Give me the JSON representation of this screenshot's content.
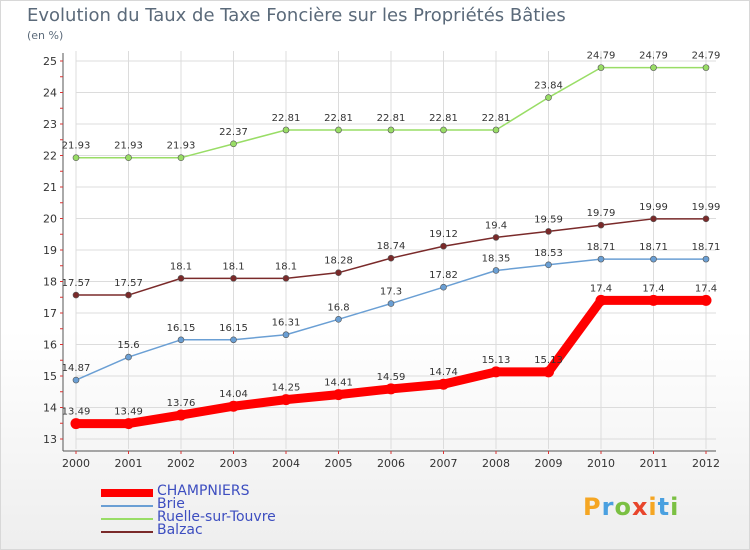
{
  "chart_data": {
    "type": "line",
    "title": "Evolution du Taux de Taxe Foncière sur les Propriétés Bâties",
    "subtitle": "(en %)",
    "x": [
      "2000",
      "2001",
      "2002",
      "2003",
      "2004",
      "2005",
      "2006",
      "2007",
      "2008",
      "2009",
      "2010",
      "2011",
      "2012"
    ],
    "ylim": [
      13,
      25
    ],
    "yticks": [
      "13",
      "14",
      "15",
      "16",
      "17",
      "18",
      "19",
      "20",
      "21",
      "22",
      "23",
      "24",
      "25"
    ],
    "grid": true,
    "legend": "bottom-left",
    "series": [
      {
        "name": "CHAMPNIERS",
        "color": "#ff0000",
        "values": [
          13.49,
          13.49,
          13.76,
          14.04,
          14.25,
          14.41,
          14.59,
          14.74,
          15.13,
          15.13,
          17.4,
          17.4,
          17.4
        ],
        "labels": [
          "13.49",
          "13.49",
          "13.76",
          "14.04",
          "14.25",
          "14.41",
          "14.59",
          "14.74",
          "15.13",
          "15.13",
          "17.4",
          "17.4",
          "17.4"
        ]
      },
      {
        "name": "Brie",
        "color": "#6a9fd4",
        "values": [
          14.87,
          15.6,
          16.15,
          16.15,
          16.31,
          16.8,
          17.3,
          17.82,
          18.35,
          18.53,
          18.71,
          18.71,
          18.71
        ],
        "labels": [
          "14.87",
          "15.6",
          "16.15",
          "16.15",
          "16.31",
          "16.8",
          "17.3",
          "17.82",
          "18.35",
          "18.53",
          "18.71",
          "18.71",
          "18.71"
        ]
      },
      {
        "name": "Ruelle-sur-Touvre",
        "color": "#99dd66",
        "values": [
          21.93,
          21.93,
          21.93,
          22.37,
          22.81,
          22.81,
          22.81,
          22.81,
          22.81,
          23.84,
          24.79,
          24.79,
          24.79
        ],
        "labels": [
          "21.93",
          "21.93",
          "21.93",
          "22.37",
          "22.81",
          "22.81",
          "22.81",
          "22.81",
          "22.81",
          "23.84",
          "24.79",
          "24.79",
          "24.79"
        ]
      },
      {
        "name": "Balzac",
        "color": "#7a2a2a",
        "values": [
          17.57,
          17.57,
          18.1,
          18.1,
          18.1,
          18.28,
          18.74,
          19.12,
          19.4,
          19.59,
          19.79,
          19.99,
          19.99
        ],
        "labels": [
          "17.57",
          "17.57",
          "18.1",
          "18.1",
          "18.1",
          "18.28",
          "18.74",
          "19.12",
          "19.4",
          "19.59",
          "19.79",
          "19.99",
          "19.99"
        ]
      }
    ]
  },
  "logo": {
    "text": "Proxiti"
  }
}
